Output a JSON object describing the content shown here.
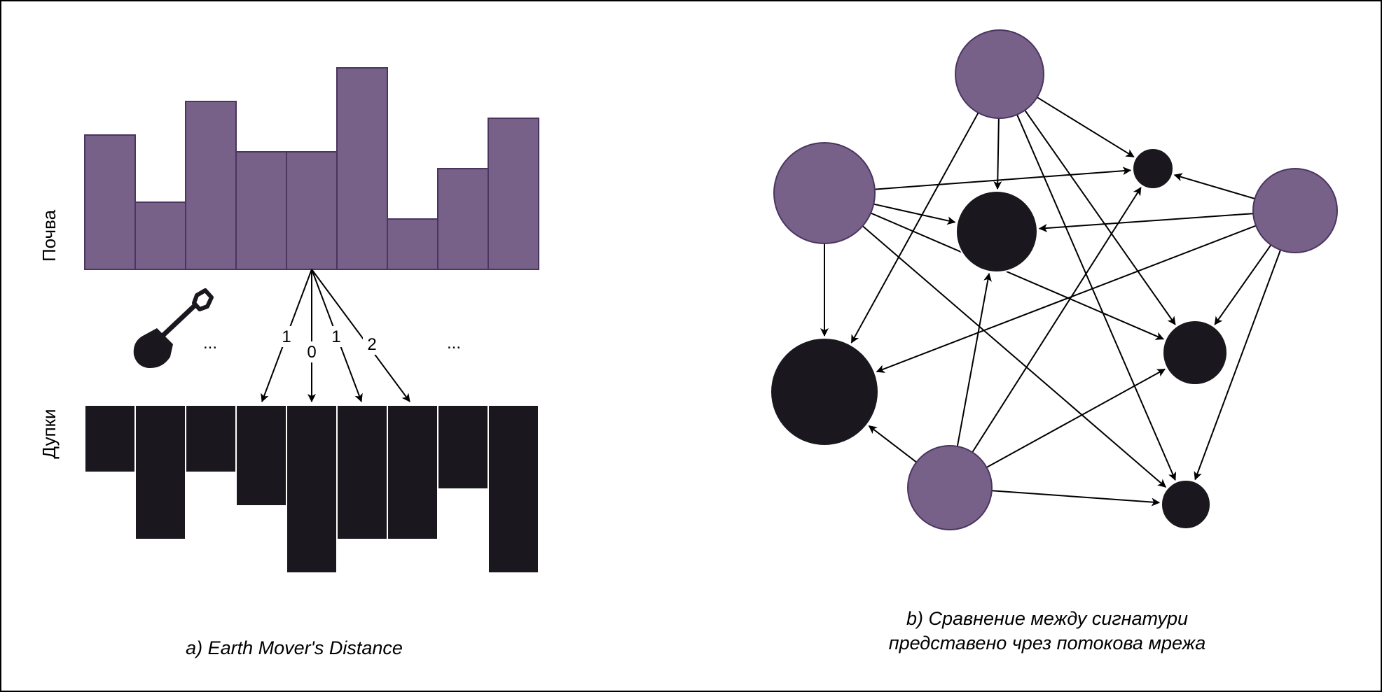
{
  "colors": {
    "earth": "#776189",
    "earth_stroke": "#4a3560",
    "hole": "#1a171e",
    "line": "#000000",
    "background": "#ffffff"
  },
  "panel_a": {
    "earth_label": "Почва",
    "holes_label": "Дупки",
    "earth_bars": [
      4,
      2,
      5,
      3.5,
      3.5,
      6,
      1.5,
      3,
      4.5
    ],
    "hole_bars": [
      2,
      4,
      2,
      3,
      5,
      4,
      4,
      2.5,
      5
    ],
    "ellipsis_left": "...",
    "ellipsis_right": "...",
    "flow_costs": [
      "1",
      "0",
      "1",
      "2"
    ],
    "shovel_icon": "shovel-icon",
    "caption": "a) Earth Mover's Distance"
  },
  "panel_b": {
    "caption_line1": "b) Сравнение между сигнатури",
    "caption_line2": "представено чрез потокова мрежа",
    "source_nodes": [
      "s1",
      "s2",
      "s3",
      "s4"
    ],
    "sink_nodes": [
      "d1",
      "d2",
      "d3",
      "d4",
      "d5"
    ]
  }
}
